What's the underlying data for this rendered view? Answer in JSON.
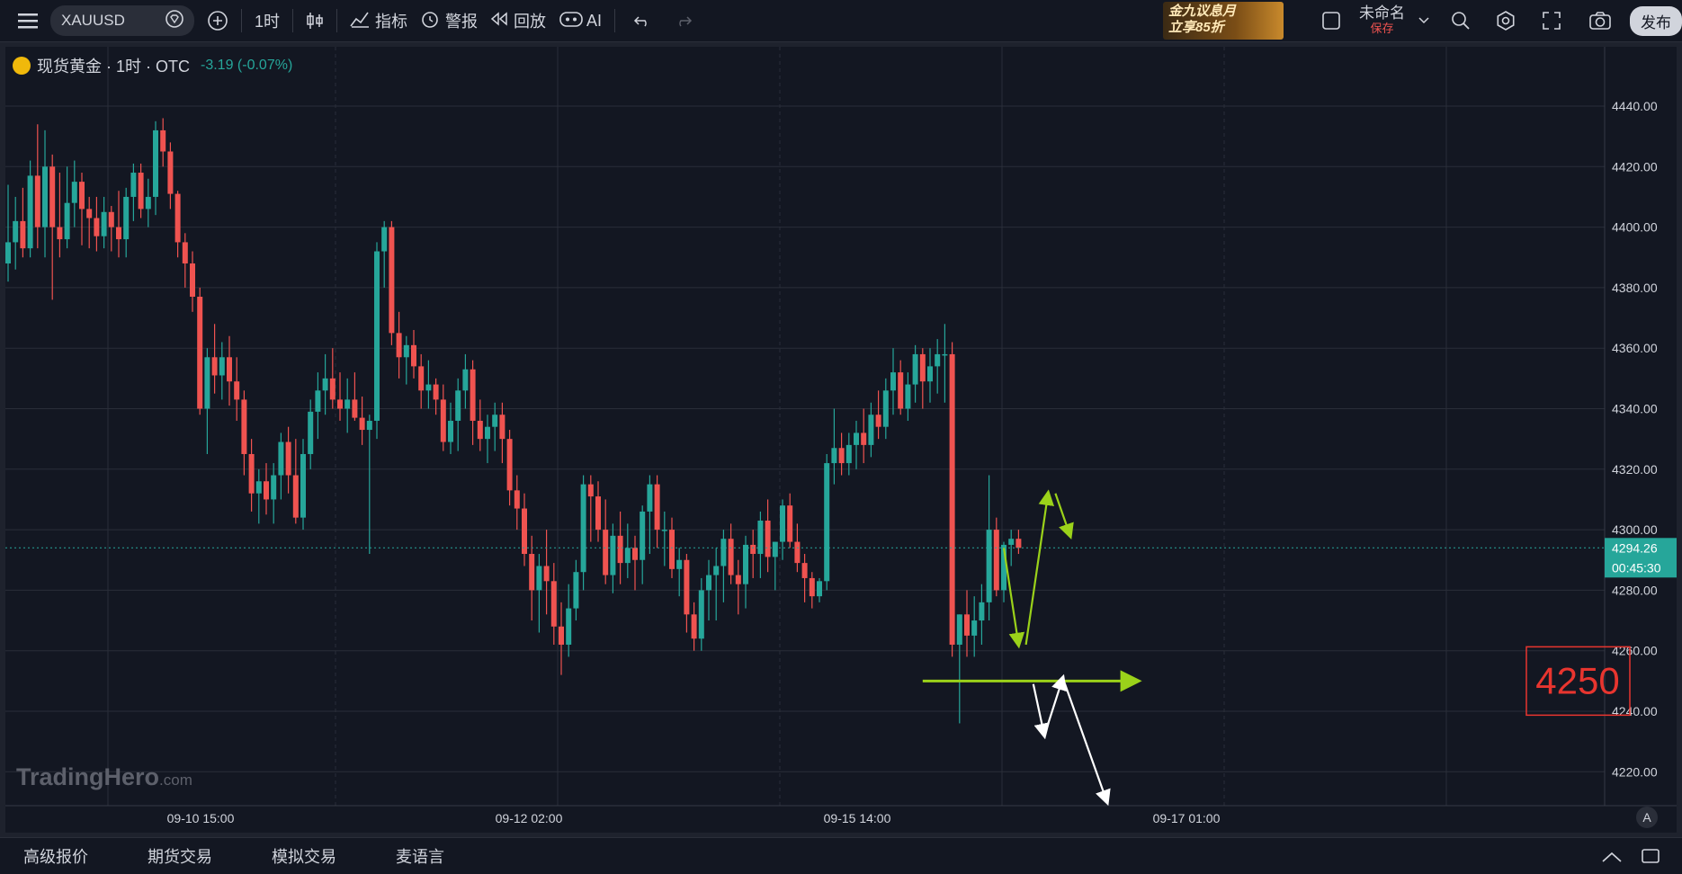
{
  "toolbar": {
    "symbol": "XAUUSD",
    "interval": "1时",
    "indicators_label": "指标",
    "alerts_label": "警报",
    "replay_label": "回放",
    "ai_label": "AI",
    "layout_name": "未命名",
    "save_label": "保存",
    "publish_label": "发布",
    "ad_line1": "金九议息月",
    "ad_line2": "立享85折"
  },
  "legend": {
    "title": "现货黄金 · 1时 · OTC",
    "change": "-3.19 (-0.07%)"
  },
  "watermark": {
    "brand": "TradingHero",
    "suffix": ".com"
  },
  "bottom_tabs": [
    "高级报价",
    "期货交易",
    "模拟交易",
    "麦语言"
  ],
  "colors": {
    "up": "#26a69a",
    "down": "#ef5350",
    "background": "#131722",
    "grid": "#2a2e39",
    "annotation_green": "#9bd21a",
    "annotation_white": "#ffffff",
    "highlight_box": "#e8352f"
  },
  "chart_data": {
    "type": "candlestick",
    "symbol": "XAUUSD",
    "timeframe": "1h",
    "y_ticks": [
      4440,
      4420,
      4400,
      4380,
      4360,
      4340,
      4320,
      4300,
      4280,
      4260,
      4240,
      4220
    ],
    "ylim": [
      4212,
      4450
    ],
    "x_labels": [
      "09-10 15:00",
      "09-12 02:00",
      "09-15 14:00",
      "09-17 01:00"
    ],
    "current_price": "4294.26",
    "countdown": "00:45:30",
    "key_level": 4250,
    "key_level_label": "4250",
    "axis_mode_label": "A",
    "candles": [
      [
        4388,
        4414,
        4382,
        4395
      ],
      [
        4395,
        4410,
        4386,
        4402
      ],
      [
        4402,
        4413,
        4390,
        4393
      ],
      [
        4393,
        4422,
        4390,
        4417
      ],
      [
        4417,
        4434,
        4393,
        4400
      ],
      [
        4400,
        4432,
        4390,
        4420
      ],
      [
        4420,
        4424,
        4376,
        4400
      ],
      [
        4400,
        4418,
        4390,
        4396
      ],
      [
        4396,
        4420,
        4393,
        4408
      ],
      [
        4408,
        4422,
        4400,
        4415
      ],
      [
        4415,
        4418,
        4394,
        4406
      ],
      [
        4406,
        4410,
        4393,
        4403
      ],
      [
        4403,
        4410,
        4392,
        4397
      ],
      [
        4397,
        4410,
        4393,
        4405
      ],
      [
        4405,
        4407,
        4392,
        4400
      ],
      [
        4400,
        4412,
        4390,
        4396
      ],
      [
        4396,
        4413,
        4390,
        4410
      ],
      [
        4410,
        4421,
        4402,
        4418
      ],
      [
        4418,
        4421,
        4403,
        4406
      ],
      [
        4406,
        4416,
        4400,
        4410
      ],
      [
        4410,
        4435,
        4404,
        4432
      ],
      [
        4432,
        4436,
        4420,
        4425
      ],
      [
        4425,
        4428,
        4406,
        4411
      ],
      [
        4411,
        4412,
        4390,
        4395
      ],
      [
        4395,
        4398,
        4380,
        4388
      ],
      [
        4388,
        4392,
        4372,
        4377
      ],
      [
        4377,
        4380,
        4338,
        4340
      ],
      [
        4340,
        4360,
        4325,
        4357
      ],
      [
        4357,
        4368,
        4345,
        4351
      ],
      [
        4351,
        4362,
        4343,
        4357
      ],
      [
        4357,
        4364,
        4341,
        4349
      ],
      [
        4349,
        4357,
        4336,
        4343
      ],
      [
        4343,
        4346,
        4318,
        4325
      ],
      [
        4325,
        4330,
        4306,
        4312
      ],
      [
        4312,
        4320,
        4302,
        4316
      ],
      [
        4316,
        4322,
        4305,
        4310
      ],
      [
        4310,
        4322,
        4302,
        4318
      ],
      [
        4318,
        4332,
        4310,
        4329
      ],
      [
        4329,
        4334,
        4312,
        4318
      ],
      [
        4318,
        4330,
        4302,
        4304
      ],
      [
        4304,
        4330,
        4300,
        4325
      ],
      [
        4325,
        4343,
        4320,
        4339
      ],
      [
        4339,
        4352,
        4330,
        4346
      ],
      [
        4346,
        4358,
        4338,
        4350
      ],
      [
        4350,
        4360,
        4340,
        4343
      ],
      [
        4343,
        4352,
        4336,
        4340
      ],
      [
        4340,
        4350,
        4332,
        4343
      ],
      [
        4343,
        4352,
        4336,
        4337
      ],
      [
        4337,
        4344,
        4328,
        4333
      ],
      [
        4333,
        4338,
        4292,
        4336
      ],
      [
        4336,
        4395,
        4330,
        4392
      ],
      [
        4392,
        4402,
        4380,
        4400
      ],
      [
        4400,
        4402,
        4361,
        4365
      ],
      [
        4365,
        4372,
        4350,
        4357
      ],
      [
        4357,
        4364,
        4348,
        4361
      ],
      [
        4361,
        4366,
        4350,
        4354
      ],
      [
        4354,
        4358,
        4340,
        4346
      ],
      [
        4346,
        4356,
        4340,
        4348
      ],
      [
        4348,
        4350,
        4338,
        4343
      ],
      [
        4343,
        4348,
        4326,
        4329
      ],
      [
        4329,
        4342,
        4325,
        4336
      ],
      [
        4336,
        4350,
        4326,
        4346
      ],
      [
        4346,
        4358,
        4340,
        4353
      ],
      [
        4353,
        4356,
        4328,
        4336
      ],
      [
        4336,
        4343,
        4326,
        4330
      ],
      [
        4330,
        4338,
        4322,
        4334
      ],
      [
        4334,
        4342,
        4326,
        4338
      ],
      [
        4338,
        4342,
        4322,
        4330
      ],
      [
        4330,
        4333,
        4308,
        4313
      ],
      [
        4313,
        4318,
        4300,
        4307
      ],
      [
        4307,
        4312,
        4288,
        4292
      ],
      [
        4292,
        4298,
        4270,
        4280
      ],
      [
        4280,
        4292,
        4266,
        4288
      ],
      [
        4288,
        4300,
        4272,
        4283
      ],
      [
        4283,
        4289,
        4262,
        4268
      ],
      [
        4268,
        4276,
        4252,
        4262
      ],
      [
        4262,
        4282,
        4258,
        4274
      ],
      [
        4274,
        4290,
        4270,
        4286
      ],
      [
        4286,
        4318,
        4280,
        4315
      ],
      [
        4315,
        4318,
        4296,
        4311
      ],
      [
        4311,
        4316,
        4296,
        4300
      ],
      [
        4300,
        4310,
        4282,
        4285
      ],
      [
        4285,
        4302,
        4279,
        4298
      ],
      [
        4298,
        4306,
        4282,
        4289
      ],
      [
        4289,
        4302,
        4284,
        4294
      ],
      [
        4294,
        4298,
        4280,
        4290
      ],
      [
        4290,
        4308,
        4282,
        4306
      ],
      [
        4306,
        4318,
        4292,
        4315
      ],
      [
        4315,
        4318,
        4294,
        4300
      ],
      [
        4300,
        4306,
        4288,
        4300
      ],
      [
        4300,
        4304,
        4284,
        4287
      ],
      [
        4287,
        4294,
        4278,
        4290
      ],
      [
        4290,
        4292,
        4266,
        4272
      ],
      [
        4272,
        4276,
        4260,
        4264
      ],
      [
        4264,
        4284,
        4260,
        4280
      ],
      [
        4280,
        4290,
        4270,
        4285
      ],
      [
        4285,
        4294,
        4270,
        4288
      ],
      [
        4288,
        4300,
        4276,
        4297
      ],
      [
        4297,
        4302,
        4282,
        4285
      ],
      [
        4285,
        4290,
        4272,
        4282
      ],
      [
        4282,
        4298,
        4274,
        4295
      ],
      [
        4295,
        4300,
        4284,
        4292
      ],
      [
        4292,
        4306,
        4284,
        4303
      ],
      [
        4303,
        4310,
        4286,
        4291
      ],
      [
        4291,
        4296,
        4280,
        4296
      ],
      [
        4296,
        4310,
        4290,
        4308
      ],
      [
        4308,
        4312,
        4294,
        4296
      ],
      [
        4296,
        4302,
        4286,
        4289
      ],
      [
        4289,
        4292,
        4276,
        4284
      ],
      [
        4284,
        4286,
        4274,
        4278
      ],
      [
        4278,
        4284,
        4276,
        4283
      ],
      [
        4283,
        4325,
        4280,
        4322
      ],
      [
        4322,
        4340,
        4315,
        4327
      ],
      [
        4327,
        4332,
        4318,
        4322
      ],
      [
        4322,
        4332,
        4318,
        4328
      ],
      [
        4328,
        4336,
        4320,
        4332
      ],
      [
        4332,
        4340,
        4322,
        4328
      ],
      [
        4328,
        4342,
        4324,
        4338
      ],
      [
        4338,
        4346,
        4330,
        4334
      ],
      [
        4334,
        4350,
        4330,
        4346
      ],
      [
        4346,
        4360,
        4338,
        4352
      ],
      [
        4352,
        4356,
        4338,
        4340
      ],
      [
        4340,
        4352,
        4336,
        4348
      ],
      [
        4348,
        4361,
        4342,
        4358
      ],
      [
        4358,
        4360,
        4340,
        4349
      ],
      [
        4349,
        4360,
        4342,
        4354
      ],
      [
        4354,
        4363,
        4345,
        4358
      ],
      [
        4358,
        4368,
        4342,
        4358
      ],
      [
        4358,
        4362,
        4258,
        4262
      ],
      [
        4262,
        4272,
        4236,
        4272
      ],
      [
        4272,
        4280,
        4258,
        4265
      ],
      [
        4265,
        4278,
        4258,
        4270
      ],
      [
        4270,
        4282,
        4262,
        4276
      ],
      [
        4276,
        4318,
        4270,
        4300
      ],
      [
        4300,
        4304,
        4278,
        4280
      ],
      [
        4280,
        4296,
        4276,
        4295
      ],
      [
        4295,
        4300,
        4288,
        4297
      ],
      [
        4297,
        4300,
        4292,
        4294
      ]
    ],
    "annotations": [
      {
        "type": "hline_arrow",
        "color": "green",
        "from": [
          124,
          4250
        ],
        "to": [
          153,
          4250
        ]
      },
      {
        "type": "arrow",
        "color": "green",
        "points": [
          [
            135,
            4294
          ],
          [
            137,
            4262
          ]
        ]
      },
      {
        "type": "arrow",
        "color": "green",
        "points": [
          [
            138,
            4262
          ],
          [
            141,
            4312
          ]
        ]
      },
      {
        "type": "arrow",
        "color": "green",
        "points": [
          [
            142,
            4312
          ],
          [
            144,
            4298
          ]
        ]
      },
      {
        "type": "arrow",
        "color": "white",
        "points": [
          [
            139,
            4249
          ],
          [
            140.5,
            4232
          ]
        ]
      },
      {
        "type": "arrow",
        "color": "white",
        "points": [
          [
            140.5,
            4232
          ],
          [
            143,
            4251
          ]
        ]
      },
      {
        "type": "arrow",
        "color": "white",
        "points": [
          [
            143,
            4251
          ],
          [
            149,
            4210
          ]
        ]
      }
    ]
  }
}
